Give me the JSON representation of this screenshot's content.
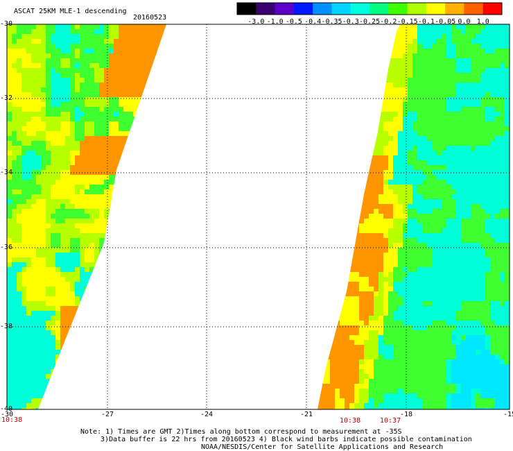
{
  "header": {
    "title": "ASCAT 25KM MLE-1 descending",
    "date": "20160523"
  },
  "colorbar": {
    "labels": [
      "-3.0",
      "-1.0",
      "-0.5",
      "-0.4",
      "-0.35",
      "-0.3",
      "-0.25",
      "-0.2",
      "-0.15",
      "-0.1",
      "-0.05",
      "0.0",
      "1.0"
    ],
    "colors": [
      "#000000",
      "#3b006f",
      "#5a00c8",
      "#0018ff",
      "#0090ff",
      "#00d4ff",
      "#00ffe0",
      "#00ff80",
      "#40ff00",
      "#b0ff00",
      "#ffff00",
      "#ffb000",
      "#ff6000",
      "#ff0000"
    ]
  },
  "map": {
    "lat_labels": [
      "-30",
      "-32",
      "-34",
      "-36",
      "-38",
      "-40"
    ],
    "lon_labels": [
      "-30",
      "-27",
      "-24",
      "-21",
      "-18",
      "-15"
    ],
    "swath_times": [
      "10:38",
      "10:38",
      "10:37"
    ],
    "palette": {
      "orange": "#ff9600",
      "yellow": "#ffff00",
      "lime": "#b8ff00",
      "green": "#40ff30",
      "cyan": "#00ffd8",
      "cyan_deep": "#00e8ff"
    }
  },
  "notes": {
    "line1": "Note: 1) Times are GMT 2)Times along bottom correspond to measurement at -35S",
    "line2": "3)Data buffer is 22 hrs from 20160523 4) Black wind barbs indicate possible contamination",
    "line3": "NOAA/NESDIS/Center for Satellite Applications and Research"
  }
}
